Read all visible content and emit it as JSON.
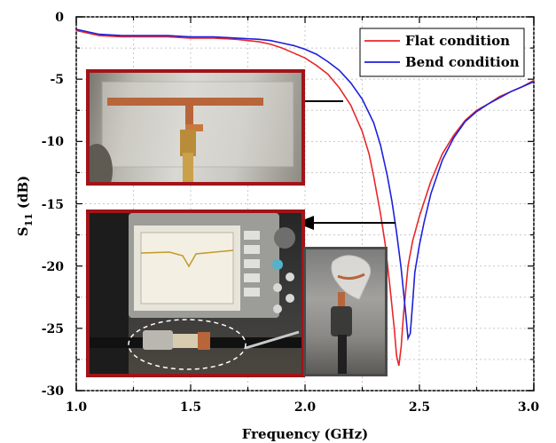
{
  "chart_data": {
    "type": "line",
    "xlabel": "Frequency (GHz)",
    "ylabel_main": "S",
    "ylabel_sub": "11",
    "ylabel_unit": "(dB)",
    "xlim": [
      1.0,
      3.0
    ],
    "ylim": [
      -30,
      0
    ],
    "xticks": [
      "1.0",
      "1.5",
      "2.0",
      "2.5",
      "3.0"
    ],
    "yticks": [
      "0",
      "-5",
      "-10",
      "-15",
      "-20",
      "-25",
      "-30"
    ],
    "grid": true,
    "legend_position": "top-right",
    "series": [
      {
        "name": "Flat condition",
        "color": "#e8272a",
        "x": [
          1.0,
          1.1,
          1.2,
          1.3,
          1.4,
          1.5,
          1.6,
          1.7,
          1.8,
          1.85,
          1.9,
          1.95,
          2.0,
          2.05,
          2.1,
          2.15,
          2.2,
          2.25,
          2.28,
          2.3,
          2.33,
          2.35,
          2.37,
          2.39,
          2.4,
          2.41,
          2.42,
          2.43,
          2.44,
          2.45,
          2.47,
          2.5,
          2.55,
          2.6,
          2.65,
          2.7,
          2.75,
          2.8,
          2.85,
          2.9,
          2.95,
          3.0
        ],
        "y": [
          -1.1,
          -1.5,
          -1.6,
          -1.6,
          -1.6,
          -1.7,
          -1.7,
          -1.8,
          -2.0,
          -2.2,
          -2.5,
          -2.9,
          -3.3,
          -3.9,
          -4.6,
          -5.7,
          -7.1,
          -9.2,
          -11.0,
          -12.8,
          -15.8,
          -18.2,
          -21.5,
          -25.0,
          -27.2,
          -28.0,
          -26.5,
          -24.0,
          -22.0,
          -20.0,
          -18.0,
          -16.0,
          -13.2,
          -11.0,
          -9.5,
          -8.3,
          -7.5,
          -7.0,
          -6.4,
          -6.0,
          -5.6,
          -5.1
        ]
      },
      {
        "name": "Bend condition",
        "color": "#1f1fdc",
        "x": [
          1.0,
          1.1,
          1.2,
          1.3,
          1.4,
          1.5,
          1.6,
          1.7,
          1.8,
          1.85,
          1.9,
          1.95,
          2.0,
          2.05,
          2.1,
          2.15,
          2.2,
          2.25,
          2.3,
          2.33,
          2.36,
          2.38,
          2.4,
          2.42,
          2.44,
          2.45,
          2.46,
          2.47,
          2.48,
          2.5,
          2.52,
          2.55,
          2.6,
          2.65,
          2.7,
          2.75,
          2.8,
          2.85,
          2.9,
          2.95,
          3.0
        ],
        "y": [
          -1.0,
          -1.4,
          -1.5,
          -1.5,
          -1.5,
          -1.6,
          -1.6,
          -1.7,
          -1.8,
          -1.9,
          -2.1,
          -2.3,
          -2.6,
          -3.0,
          -3.6,
          -4.3,
          -5.3,
          -6.6,
          -8.5,
          -10.3,
          -12.8,
          -14.8,
          -17.3,
          -20.2,
          -23.8,
          -25.8,
          -25.4,
          -23.0,
          -20.5,
          -18.3,
          -16.5,
          -14.2,
          -11.5,
          -9.7,
          -8.4,
          -7.6,
          -7.0,
          -6.5,
          -6.0,
          -5.6,
          -5.2
        ]
      }
    ]
  }
}
